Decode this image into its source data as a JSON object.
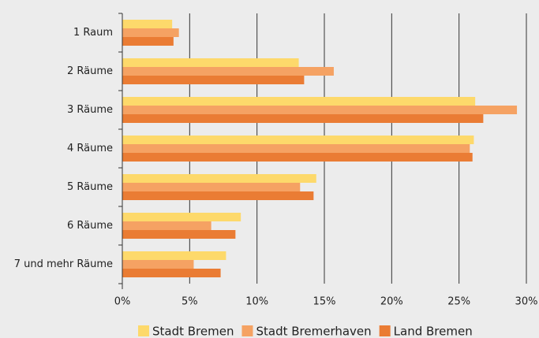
{
  "chart_data": {
    "type": "hbar",
    "categories": [
      "1 Raum",
      "2 Räume",
      "3 Räume",
      "4 Räume",
      "5 Räume",
      "6 Räume",
      "7 und mehr Räume"
    ],
    "series": [
      {
        "name": "Stadt Bremen",
        "color": "#fdd96b",
        "values": [
          3.7,
          13.1,
          26.2,
          26.1,
          14.4,
          8.8,
          7.7
        ]
      },
      {
        "name": "Stadt Bremerhaven",
        "color": "#f5a263",
        "values": [
          4.2,
          15.7,
          29.3,
          25.8,
          13.2,
          6.6,
          5.3
        ]
      },
      {
        "name": "Land Bremen",
        "color": "#ea7c34",
        "values": [
          3.8,
          13.5,
          26.8,
          26.0,
          14.2,
          8.4,
          7.3
        ]
      }
    ],
    "xlim": [
      0,
      30
    ],
    "xticks": [
      {
        "value": 0,
        "label": "0%"
      },
      {
        "value": 5,
        "label": "5%"
      },
      {
        "value": 10,
        "label": "10%"
      },
      {
        "value": 15,
        "label": "15%"
      },
      {
        "value": 20,
        "label": "20%"
      },
      {
        "value": 25,
        "label": "25%"
      },
      {
        "value": 30,
        "label": "30%"
      }
    ],
    "grid": true,
    "legend": "bottom"
  }
}
